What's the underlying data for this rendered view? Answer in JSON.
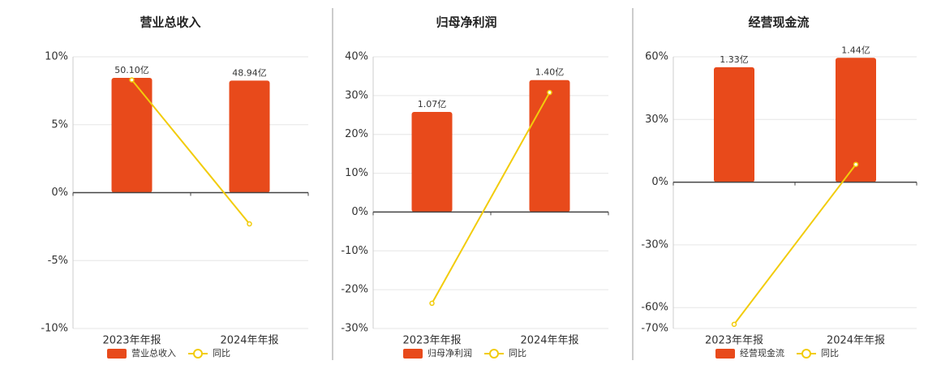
{
  "colors": {
    "bar": "#e84a1b",
    "line": "#f2cc0c",
    "grid": "#e6e6e6",
    "axis": "#444444",
    "divider": "#999999"
  },
  "chart_data": [
    {
      "type": "bar",
      "title": "营业总收入",
      "categories": [
        "2023年年报",
        "2024年年报"
      ],
      "bar_series": {
        "name": "营业总收入",
        "values": [
          8.45,
          8.25
        ],
        "labels": [
          "50.10亿",
          "48.94亿"
        ]
      },
      "line_series": {
        "name": "同比",
        "values": [
          8.3,
          -2.3
        ]
      },
      "yticks": [
        10,
        5,
        0,
        -5,
        -10
      ],
      "ytick_labels": [
        "10%",
        "5%",
        "0%",
        "-5%",
        "-10%"
      ],
      "ylim": [
        -10,
        10
      ],
      "grid": true,
      "legend_position": "bottom"
    },
    {
      "type": "bar",
      "title": "归母净利润",
      "categories": [
        "2023年年报",
        "2024年年报"
      ],
      "bar_series": {
        "name": "归母净利润",
        "values": [
          25.8,
          34
        ],
        "labels": [
          "1.07亿",
          "1.40亿"
        ]
      },
      "line_series": {
        "name": "同比",
        "values": [
          -23.5,
          30.8
        ]
      },
      "yticks": [
        40,
        30,
        20,
        10,
        0,
        -10,
        -20,
        -30
      ],
      "ytick_labels": [
        "40%",
        "30%",
        "20%",
        "10%",
        "0%",
        "-10%",
        "-20%",
        "-30%"
      ],
      "ylim": [
        -30,
        40
      ],
      "grid": true,
      "legend_position": "bottom"
    },
    {
      "type": "bar",
      "title": "经营现金流",
      "categories": [
        "2023年年报",
        "2024年年报"
      ],
      "bar_series": {
        "name": "经营现金流",
        "values": [
          55,
          59.5
        ],
        "labels": [
          "1.33亿",
          "1.44亿"
        ]
      },
      "line_series": {
        "name": "同比",
        "values": [
          -68,
          8.5
        ]
      },
      "yticks": [
        60,
        30,
        0,
        -30,
        -60,
        -70
      ],
      "ytick_labels": [
        "60%",
        "30%",
        "0%",
        "-30%",
        "-60%",
        "-70%"
      ],
      "ylim": [
        -70,
        60
      ],
      "grid": true,
      "legend_position": "bottom"
    }
  ]
}
